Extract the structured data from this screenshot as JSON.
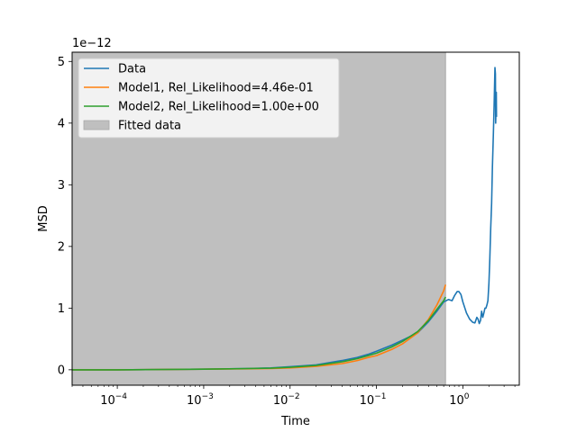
{
  "chart_data": {
    "type": "line",
    "xlabel": "Time",
    "ylabel": "MSD",
    "x_scale": "log",
    "y_offset_text": "1e−12",
    "xlim": [
      3e-05,
      4.5
    ],
    "ylim": [
      -0.25,
      5.15
    ],
    "x_ticks": [
      {
        "value": 0.0001,
        "base": "10",
        "exp": "−4"
      },
      {
        "value": 0.001,
        "base": "10",
        "exp": "−3"
      },
      {
        "value": 0.01,
        "base": "10",
        "exp": "−2"
      },
      {
        "value": 0.1,
        "base": "10",
        "exp": "−1"
      },
      {
        "value": 1,
        "base": "10",
        "exp": "0"
      }
    ],
    "y_ticks": [
      {
        "value": 0,
        "label": "0"
      },
      {
        "value": 1,
        "label": "1"
      },
      {
        "value": 2,
        "label": "2"
      },
      {
        "value": 3,
        "label": "3"
      },
      {
        "value": 4,
        "label": "4"
      },
      {
        "value": 5,
        "label": "5"
      }
    ],
    "fitted_region": {
      "name": "Fitted data",
      "x_start": 3e-05,
      "x_end": 0.63,
      "color": "#bfbfbf"
    },
    "legend_position": "upper-left",
    "series": [
      {
        "name": "Data",
        "color": "#1f77b4",
        "x": [
          3e-05,
          0.0001,
          0.001,
          0.003,
          0.006,
          0.01,
          0.02,
          0.04,
          0.06,
          0.08,
          0.1,
          0.15,
          0.2,
          0.3,
          0.4,
          0.5,
          0.6,
          0.68,
          0.75,
          0.8,
          0.86,
          0.9,
          0.95,
          1.0,
          1.1,
          1.2,
          1.3,
          1.38,
          1.45,
          1.5,
          1.55,
          1.6,
          1.65,
          1.7,
          1.75,
          1.8,
          1.85,
          1.9,
          1.95,
          2.0,
          2.05,
          2.1,
          2.15,
          2.2,
          2.25,
          2.3,
          2.35,
          2.38,
          2.4,
          2.42,
          2.44,
          2.45
        ],
        "y": [
          0,
          0.0,
          0.01,
          0.02,
          0.03,
          0.05,
          0.08,
          0.15,
          0.2,
          0.25,
          0.3,
          0.4,
          0.48,
          0.6,
          0.78,
          0.95,
          1.1,
          1.14,
          1.12,
          1.2,
          1.27,
          1.27,
          1.22,
          1.1,
          0.92,
          0.82,
          0.77,
          0.76,
          0.85,
          0.82,
          0.75,
          0.8,
          0.95,
          0.85,
          0.92,
          1.0,
          1.0,
          1.05,
          1.12,
          1.4,
          1.8,
          2.3,
          2.7,
          3.3,
          3.8,
          4.3,
          4.9,
          4.8,
          4.0,
          4.3,
          4.5,
          4.1
        ]
      },
      {
        "name": "Model1, Rel_Likelihood=4.46e-01",
        "color": "#ff7f0e",
        "x": [
          3e-05,
          0.0001,
          0.001,
          0.003,
          0.006,
          0.01,
          0.02,
          0.04,
          0.06,
          0.08,
          0.1,
          0.15,
          0.2,
          0.3,
          0.4,
          0.5,
          0.6,
          0.63
        ],
        "y": [
          0,
          0.0,
          0.01,
          0.015,
          0.022,
          0.03,
          0.055,
          0.1,
          0.15,
          0.2,
          0.23,
          0.33,
          0.42,
          0.6,
          0.82,
          1.05,
          1.28,
          1.38
        ]
      },
      {
        "name": "Model2, Rel_Likelihood=1.00e+00",
        "color": "#2ca02c",
        "x": [
          3e-05,
          0.0001,
          0.001,
          0.003,
          0.006,
          0.01,
          0.02,
          0.04,
          0.06,
          0.08,
          0.1,
          0.15,
          0.2,
          0.3,
          0.4,
          0.5,
          0.6,
          0.63
        ],
        "y": [
          0,
          0.0,
          0.01,
          0.018,
          0.026,
          0.04,
          0.07,
          0.13,
          0.18,
          0.23,
          0.27,
          0.37,
          0.46,
          0.62,
          0.8,
          0.98,
          1.12,
          1.18
        ]
      }
    ]
  }
}
